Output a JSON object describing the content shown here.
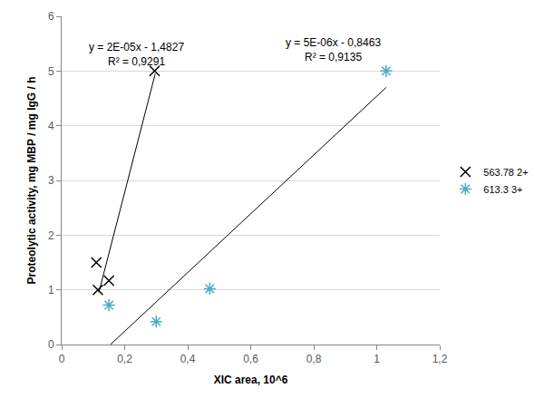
{
  "chart_data": {
    "type": "scatter",
    "x_label": "XIC area, 10^6",
    "y_label": "Proteolytic activity, mg MBP / mg IgG / h",
    "xlim": [
      0,
      1.2
    ],
    "xticks": [
      0,
      {
        "value": 0.2,
        "label": "0,2"
      },
      {
        "value": 0.4,
        "label": "0,4"
      },
      {
        "value": 0.6,
        "label": "0,6"
      },
      {
        "value": 0.8,
        "label": "0,8"
      },
      1,
      {
        "value": 1.2,
        "label": "1,2"
      }
    ],
    "ylim": [
      0,
      6
    ],
    "yticks": [
      0,
      1,
      2,
      3,
      4,
      5,
      6
    ],
    "grid": true,
    "legend": "right",
    "series": [
      {
        "name": "563.78 2+",
        "type": "scatter",
        "marker": "x",
        "color": "#000000",
        "x": [
          0.11,
          0.115,
          0.15,
          0.295
        ],
        "values": [
          1.5,
          1.0,
          1.17,
          5.0
        ]
      },
      {
        "name": "613.3 3+",
        "type": "scatter",
        "marker": "asterisk",
        "color": "#4bacc6",
        "x": [
          0.15,
          0.3,
          0.47,
          1.03
        ],
        "values": [
          0.72,
          0.42,
          1.02,
          5.0
        ]
      },
      {
        "type": "line",
        "line_style": "solid",
        "color": "#000000",
        "x": [
          0.118,
          0.297
        ],
        "values": [
          0.95,
          4.95
        ]
      },
      {
        "type": "line",
        "line_style": "solid",
        "color": "#000000",
        "x": [
          0.155,
          1.03
        ],
        "values": [
          0.0,
          4.7
        ]
      }
    ],
    "annotations": [
      {
        "text": "y = 2E-05x - 1,4827\nR² = 0,9291"
      },
      {
        "text": "y = 5E-06x - 0,8463\nR² = 0,9135"
      }
    ]
  }
}
